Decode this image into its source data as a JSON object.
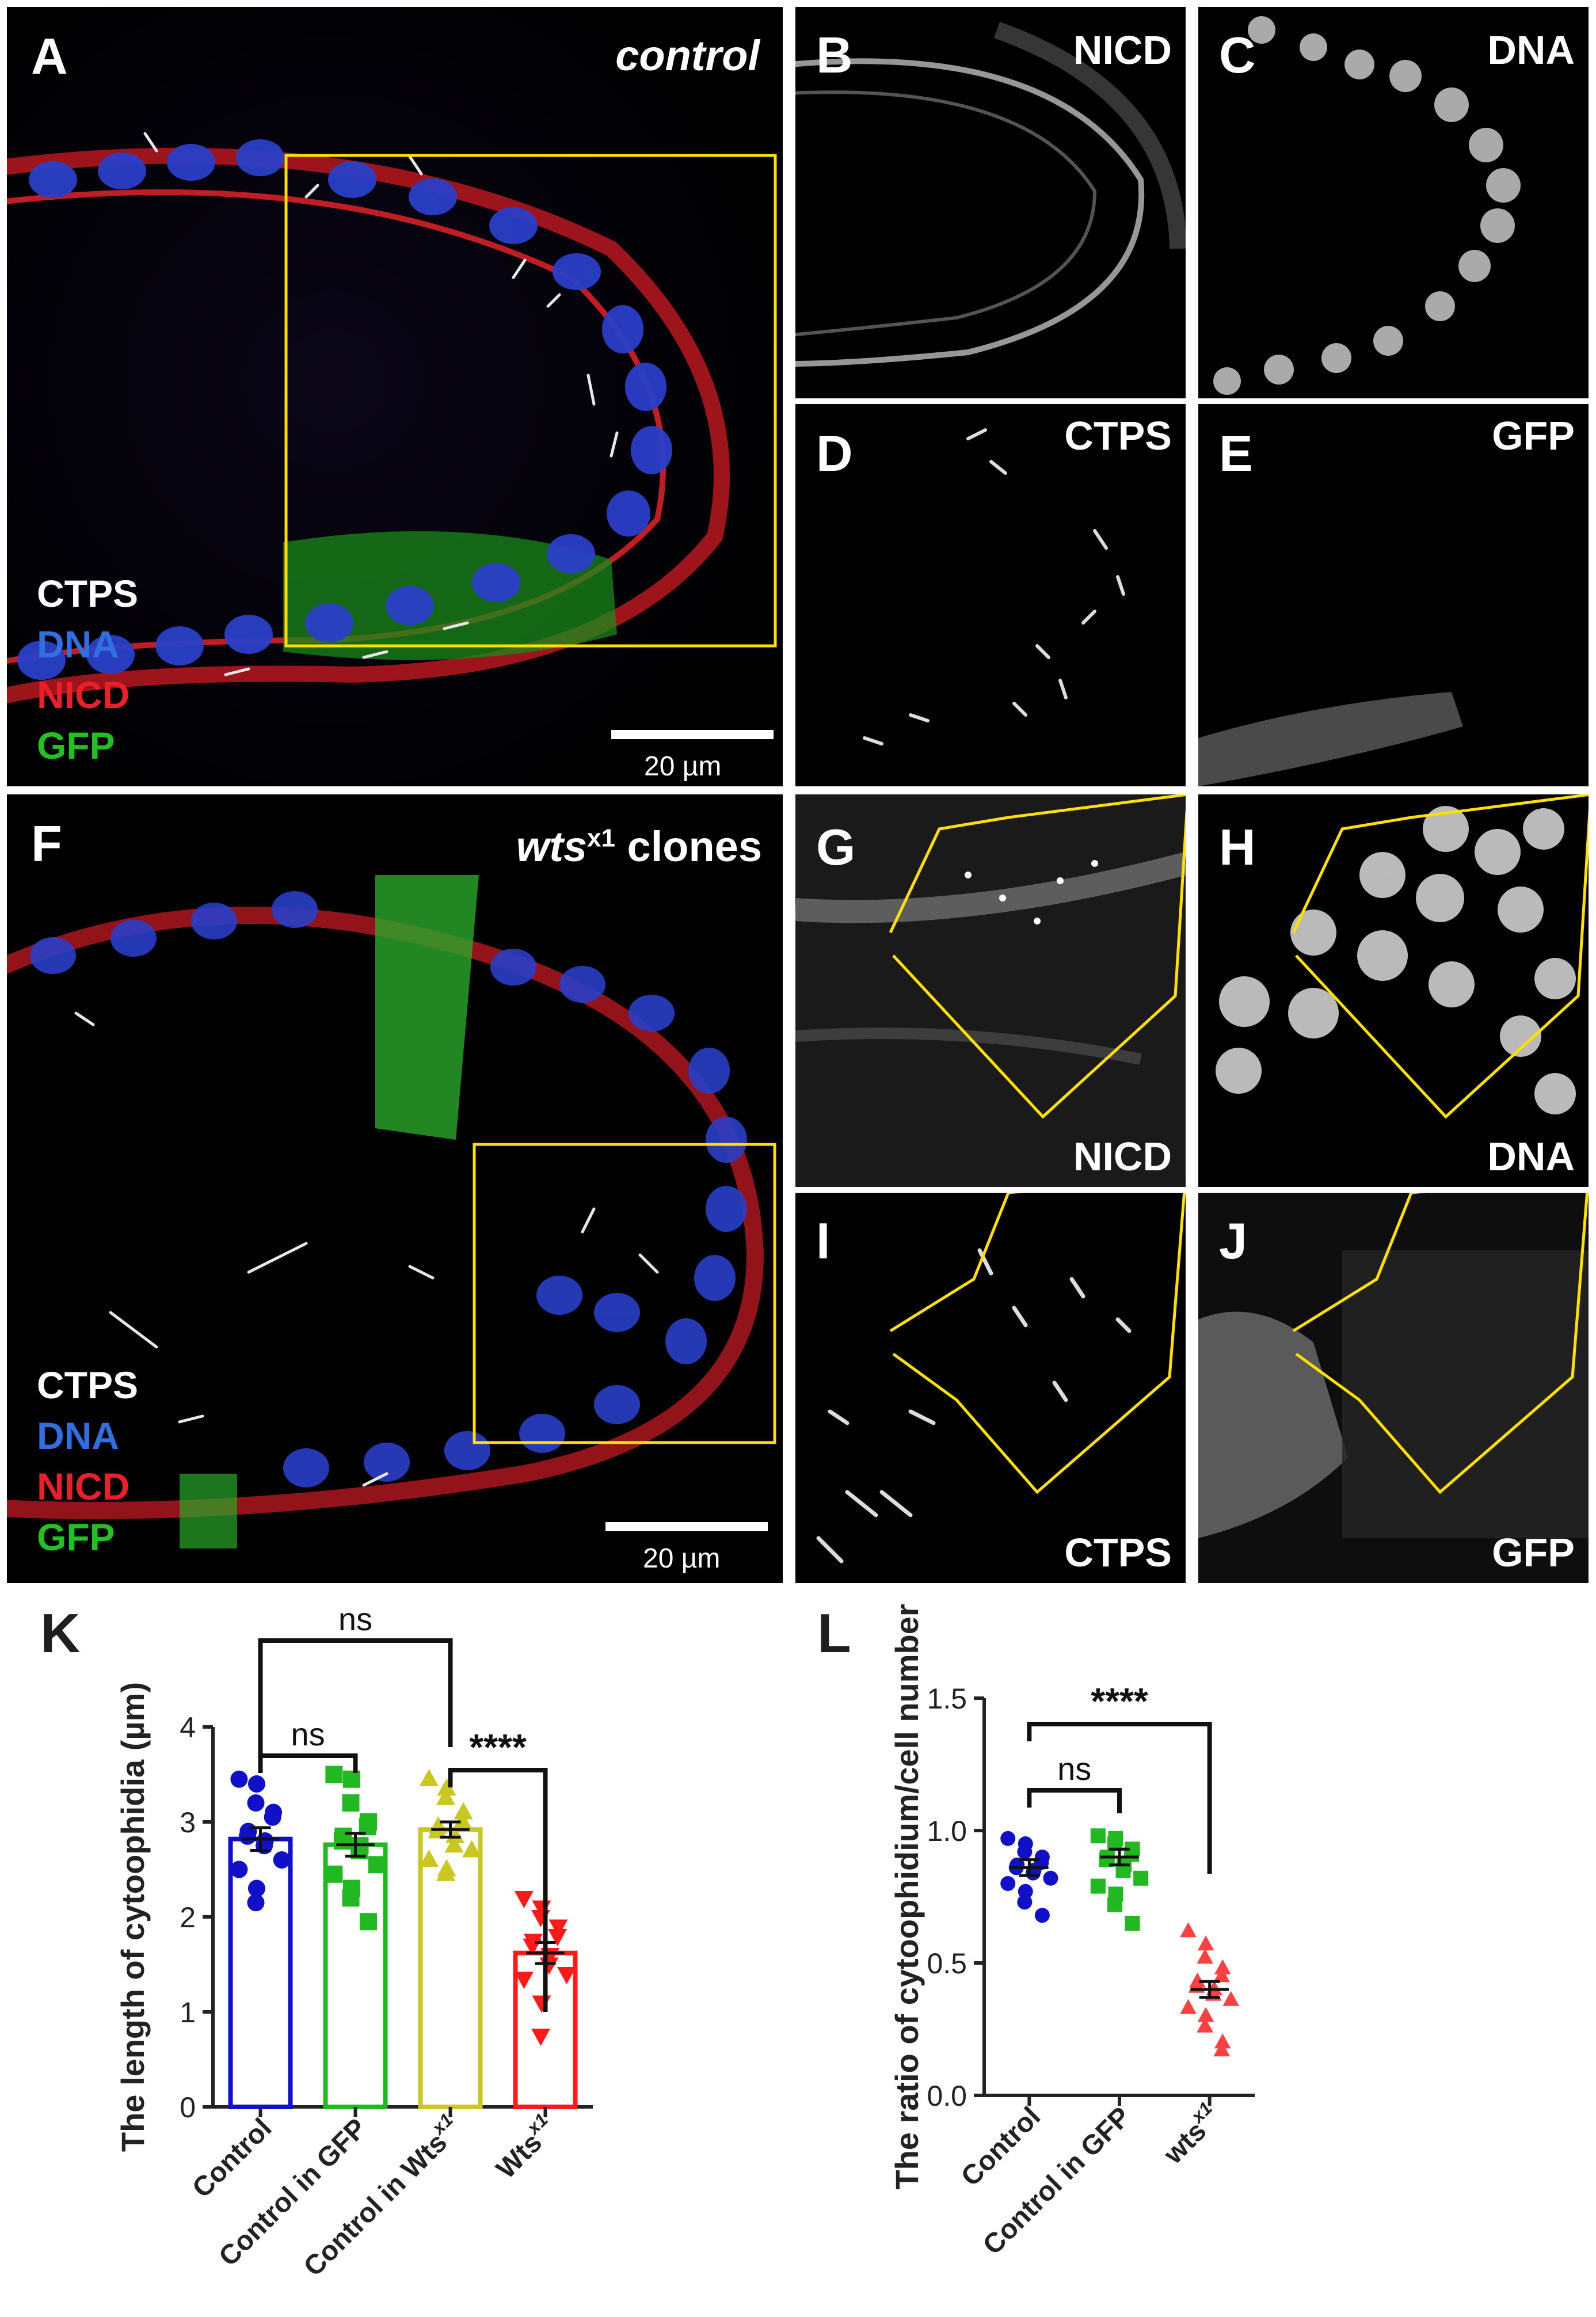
{
  "panels": {
    "A": {
      "letter": "A",
      "title": "control",
      "legend": [
        "CTPS",
        "DNA",
        "NICD",
        "GFP"
      ],
      "scale": "20 µm"
    },
    "B": {
      "letter": "B",
      "channel": "NICD"
    },
    "C": {
      "letter": "C",
      "channel": "DNA"
    },
    "D": {
      "letter": "D",
      "channel": "CTPS"
    },
    "E": {
      "letter": "E",
      "channel": "GFP"
    },
    "F": {
      "letter": "F",
      "title_italic": "wts",
      "title_sup": "x1",
      "title_rest": " clones",
      "legend": [
        "CTPS",
        "DNA",
        "NICD",
        "GFP"
      ],
      "scale": "20 µm"
    },
    "G": {
      "letter": "G",
      "channel": "NICD"
    },
    "H": {
      "letter": "H",
      "channel": "DNA"
    },
    "I": {
      "letter": "I",
      "channel": "CTPS"
    },
    "J": {
      "letter": "J",
      "channel": "GFP"
    }
  },
  "legend_colors": {
    "CTPS": "#ffffff",
    "DNA": "#2f6fe0",
    "NICD": "#e8202a",
    "GFP": "#22c020"
  },
  "chart_data": [
    {
      "panel": "K",
      "type": "bar",
      "ylabel": "The length of cytoophidia (µm)",
      "ylim": [
        0,
        4
      ],
      "yticks": [
        "0",
        "1",
        "2",
        "3",
        "4"
      ],
      "categories": [
        "Control",
        "Control in GFP",
        "Control in Wts",
        "Wts"
      ],
      "category_sup": [
        "",
        "",
        "x1",
        "x1"
      ],
      "colors": [
        "#1010c8",
        "#22b822",
        "#c8c820",
        "#ff1a1a"
      ],
      "markers": [
        "circle",
        "square",
        "triangle",
        "triangle-down"
      ],
      "means": [
        2.82,
        2.76,
        2.92,
        1.62
      ],
      "sem": [
        0.12,
        0.12,
        0.08,
        0.11
      ],
      "points": [
        [
          3.45,
          3.4,
          3.2,
          3.1,
          3.05,
          2.9,
          2.85,
          2.8,
          2.75,
          2.6,
          2.5,
          2.3,
          2.15
        ],
        [
          3.5,
          3.45,
          3.2,
          3.0,
          2.95,
          2.85,
          2.8,
          2.75,
          2.7,
          2.55,
          2.45,
          2.3,
          2.2,
          1.95
        ],
        [
          3.45,
          3.35,
          3.25,
          3.1,
          3.0,
          2.95,
          2.9,
          2.85,
          2.75,
          2.7,
          2.6,
          2.5,
          2.45
        ],
        [
          2.2,
          2.1,
          2.0,
          1.9,
          1.8,
          1.75,
          1.7,
          1.6,
          1.5,
          1.4,
          1.35,
          1.1,
          0.75
        ]
      ],
      "comparisons": [
        {
          "a": 0,
          "b": 1,
          "label": "ns"
        },
        {
          "a": 2,
          "b": 3,
          "label": "****"
        },
        {
          "a": 0,
          "b": 2,
          "label": "ns"
        }
      ]
    },
    {
      "panel": "L",
      "type": "scatter",
      "ylabel": "The ratio of cytoophidium/cell number",
      "ylim": [
        0,
        1.5
      ],
      "yticks": [
        "0.0",
        "0.5",
        "1.0",
        "1.5"
      ],
      "categories": [
        "Control",
        "Control in GFP",
        "wts"
      ],
      "category_sup": [
        "",
        "",
        "x1"
      ],
      "colors": [
        "#1010c8",
        "#22b822",
        "#ff4040"
      ],
      "markers": [
        "circle",
        "square",
        "triangle"
      ],
      "means": [
        0.86,
        0.9,
        0.4
      ],
      "sem": [
        0.03,
        0.03,
        0.03
      ],
      "points": [
        [
          0.97,
          0.95,
          0.92,
          0.9,
          0.88,
          0.87,
          0.86,
          0.85,
          0.84,
          0.82,
          0.8,
          0.77,
          0.73,
          0.68
        ],
        [
          0.98,
          0.97,
          0.95,
          0.93,
          0.91,
          0.9,
          0.89,
          0.87,
          0.85,
          0.82,
          0.79,
          0.76,
          0.72,
          0.65
        ],
        [
          0.62,
          0.57,
          0.52,
          0.48,
          0.45,
          0.43,
          0.41,
          0.4,
          0.38,
          0.36,
          0.33,
          0.3,
          0.26,
          0.2,
          0.17
        ]
      ],
      "comparisons": [
        {
          "a": 0,
          "b": 1,
          "label": "ns"
        },
        {
          "a": 0,
          "b": 2,
          "label": "****"
        }
      ]
    }
  ],
  "chart_labels": {
    "K": "K",
    "L": "L"
  }
}
